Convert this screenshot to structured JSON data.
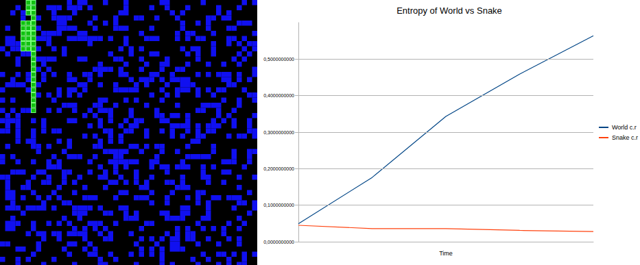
{
  "chart_data": {
    "type": "line",
    "title": "Entropy of World vs Snake",
    "x_label": "Time",
    "categories": [
      null,
      null,
      null,
      null,
      null
    ],
    "series": [
      {
        "name": "World c.r",
        "color": "#004586",
        "values": [
          0.049,
          0.176,
          0.343,
          0.459,
          0.564
        ]
      },
      {
        "name": "Snake c.r",
        "color": "#ff420e",
        "values": [
          0.045,
          0.036,
          0.036,
          0.031,
          0.028
        ]
      }
    ],
    "ylim": [
      0,
      0.6
    ],
    "yticks": [
      {
        "value": 0,
        "label": "0,0000000000"
      },
      {
        "value": 0.1,
        "label": "0,1000000000"
      },
      {
        "value": 0.2,
        "label": "0,2000000000"
      },
      {
        "value": 0.3,
        "label": "0,3000000000"
      },
      {
        "value": 0.4,
        "label": "0,4000000000"
      },
      {
        "value": 0.5,
        "label": "0,5000000000"
      }
    ],
    "grid": true,
    "legend": "right"
  }
}
